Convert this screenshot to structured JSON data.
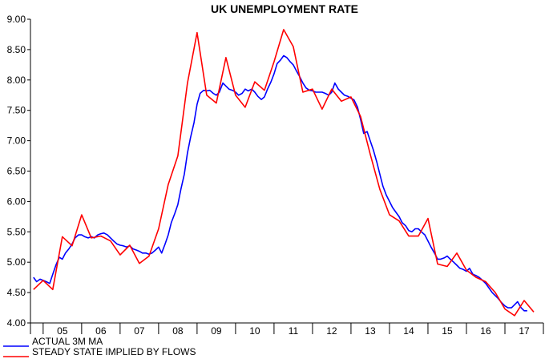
{
  "chart_data": {
    "type": "line",
    "title": "UK UNEMPLOYMENT RATE",
    "xlabel": "",
    "ylabel": "",
    "ylim": [
      4.0,
      9.0
    ],
    "yticks": [
      "4.00",
      "4.50",
      "5.00",
      "5.50",
      "6.00",
      "6.50",
      "7.00",
      "7.50",
      "8.00",
      "8.50",
      "9.00"
    ],
    "xlim": [
      2004.67,
      2018.0
    ],
    "x_categories": [
      "05",
      "06",
      "07",
      "08",
      "09",
      "10",
      "11",
      "12",
      "13",
      "14",
      "15",
      "16",
      "17"
    ],
    "grid": false,
    "legend_position": "bottom-left",
    "colors": {
      "actual": "#0000ff",
      "steady": "#ff0000",
      "axis": "#000000"
    },
    "series": [
      {
        "name": "ACTUAL 3M MA",
        "key": "actual",
        "points": [
          [
            2004.75,
            4.75
          ],
          [
            2004.83,
            4.68
          ],
          [
            2004.92,
            4.72
          ],
          [
            2005.0,
            4.7
          ],
          [
            2005.08,
            4.68
          ],
          [
            2005.17,
            4.65
          ],
          [
            2005.25,
            4.8
          ],
          [
            2005.33,
            4.95
          ],
          [
            2005.42,
            5.08
          ],
          [
            2005.5,
            5.05
          ],
          [
            2005.58,
            5.15
          ],
          [
            2005.67,
            5.22
          ],
          [
            2005.75,
            5.3
          ],
          [
            2005.83,
            5.4
          ],
          [
            2005.92,
            5.45
          ],
          [
            2006.0,
            5.45
          ],
          [
            2006.08,
            5.42
          ],
          [
            2006.17,
            5.4
          ],
          [
            2006.25,
            5.42
          ],
          [
            2006.33,
            5.4
          ],
          [
            2006.42,
            5.45
          ],
          [
            2006.5,
            5.47
          ],
          [
            2006.58,
            5.48
          ],
          [
            2006.67,
            5.45
          ],
          [
            2006.75,
            5.4
          ],
          [
            2006.83,
            5.35
          ],
          [
            2006.92,
            5.3
          ],
          [
            2007.0,
            5.28
          ],
          [
            2007.08,
            5.27
          ],
          [
            2007.17,
            5.25
          ],
          [
            2007.25,
            5.27
          ],
          [
            2007.33,
            5.22
          ],
          [
            2007.42,
            5.2
          ],
          [
            2007.5,
            5.18
          ],
          [
            2007.58,
            5.15
          ],
          [
            2007.67,
            5.15
          ],
          [
            2007.75,
            5.13
          ],
          [
            2007.83,
            5.15
          ],
          [
            2007.92,
            5.2
          ],
          [
            2008.0,
            5.25
          ],
          [
            2008.08,
            5.15
          ],
          [
            2008.17,
            5.3
          ],
          [
            2008.25,
            5.45
          ],
          [
            2008.33,
            5.65
          ],
          [
            2008.42,
            5.8
          ],
          [
            2008.5,
            5.95
          ],
          [
            2008.58,
            6.2
          ],
          [
            2008.67,
            6.45
          ],
          [
            2008.75,
            6.8
          ],
          [
            2008.83,
            7.05
          ],
          [
            2008.92,
            7.3
          ],
          [
            2009.0,
            7.6
          ],
          [
            2009.08,
            7.78
          ],
          [
            2009.17,
            7.83
          ],
          [
            2009.25,
            7.82
          ],
          [
            2009.33,
            7.83
          ],
          [
            2009.42,
            7.78
          ],
          [
            2009.5,
            7.75
          ],
          [
            2009.58,
            7.8
          ],
          [
            2009.67,
            7.95
          ],
          [
            2009.75,
            7.9
          ],
          [
            2009.83,
            7.85
          ],
          [
            2009.92,
            7.83
          ],
          [
            2010.0,
            7.8
          ],
          [
            2010.08,
            7.75
          ],
          [
            2010.17,
            7.78
          ],
          [
            2010.25,
            7.85
          ],
          [
            2010.33,
            7.82
          ],
          [
            2010.42,
            7.85
          ],
          [
            2010.5,
            7.8
          ],
          [
            2010.58,
            7.73
          ],
          [
            2010.67,
            7.68
          ],
          [
            2010.75,
            7.72
          ],
          [
            2010.83,
            7.85
          ],
          [
            2010.92,
            7.97
          ],
          [
            2011.0,
            8.1
          ],
          [
            2011.08,
            8.27
          ],
          [
            2011.17,
            8.33
          ],
          [
            2011.25,
            8.4
          ],
          [
            2011.33,
            8.37
          ],
          [
            2011.42,
            8.3
          ],
          [
            2011.5,
            8.25
          ],
          [
            2011.58,
            8.15
          ],
          [
            2011.67,
            8.05
          ],
          [
            2011.75,
            7.95
          ],
          [
            2011.83,
            7.87
          ],
          [
            2011.92,
            7.83
          ],
          [
            2012.0,
            7.82
          ],
          [
            2012.08,
            7.8
          ],
          [
            2012.17,
            7.8
          ],
          [
            2012.25,
            7.8
          ],
          [
            2012.33,
            7.78
          ],
          [
            2012.42,
            7.75
          ],
          [
            2012.5,
            7.8
          ],
          [
            2012.58,
            7.95
          ],
          [
            2012.67,
            7.85
          ],
          [
            2012.75,
            7.8
          ],
          [
            2012.83,
            7.75
          ],
          [
            2012.92,
            7.73
          ],
          [
            2013.0,
            7.7
          ],
          [
            2013.08,
            7.67
          ],
          [
            2013.17,
            7.55
          ],
          [
            2013.25,
            7.35
          ],
          [
            2013.33,
            7.12
          ],
          [
            2013.42,
            7.15
          ],
          [
            2013.5,
            7.0
          ],
          [
            2013.58,
            6.85
          ],
          [
            2013.67,
            6.65
          ],
          [
            2013.75,
            6.45
          ],
          [
            2013.83,
            6.25
          ],
          [
            2013.92,
            6.1
          ],
          [
            2014.0,
            6.0
          ],
          [
            2014.08,
            5.9
          ],
          [
            2014.17,
            5.82
          ],
          [
            2014.25,
            5.75
          ],
          [
            2014.33,
            5.65
          ],
          [
            2014.42,
            5.6
          ],
          [
            2014.5,
            5.52
          ],
          [
            2014.58,
            5.5
          ],
          [
            2014.67,
            5.55
          ],
          [
            2014.75,
            5.55
          ],
          [
            2014.83,
            5.5
          ],
          [
            2014.92,
            5.45
          ],
          [
            2015.0,
            5.35
          ],
          [
            2015.08,
            5.25
          ],
          [
            2015.17,
            5.15
          ],
          [
            2015.25,
            5.05
          ],
          [
            2015.33,
            5.05
          ],
          [
            2015.42,
            5.07
          ],
          [
            2015.5,
            5.1
          ],
          [
            2015.58,
            5.05
          ],
          [
            2015.67,
            5.0
          ],
          [
            2015.75,
            4.95
          ],
          [
            2015.83,
            4.9
          ],
          [
            2015.92,
            4.88
          ],
          [
            2016.0,
            4.85
          ],
          [
            2016.08,
            4.9
          ],
          [
            2016.17,
            4.8
          ],
          [
            2016.25,
            4.78
          ],
          [
            2016.33,
            4.75
          ],
          [
            2016.42,
            4.7
          ],
          [
            2016.5,
            4.65
          ],
          [
            2016.58,
            4.58
          ],
          [
            2016.67,
            4.5
          ],
          [
            2016.75,
            4.45
          ],
          [
            2016.83,
            4.4
          ],
          [
            2016.92,
            4.33
          ],
          [
            2017.0,
            4.28
          ],
          [
            2017.08,
            4.25
          ],
          [
            2017.17,
            4.25
          ],
          [
            2017.25,
            4.3
          ],
          [
            2017.33,
            4.35
          ],
          [
            2017.42,
            4.25
          ],
          [
            2017.5,
            4.2
          ],
          [
            2017.58,
            4.2
          ]
        ]
      },
      {
        "name": "STEADY STATE IMPLIED BY FLOWS",
        "key": "steady",
        "points": [
          [
            2004.75,
            4.55
          ],
          [
            2005.0,
            4.7
          ],
          [
            2005.25,
            4.55
          ],
          [
            2005.5,
            5.42
          ],
          [
            2005.75,
            5.27
          ],
          [
            2006.0,
            5.78
          ],
          [
            2006.25,
            5.4
          ],
          [
            2006.5,
            5.43
          ],
          [
            2006.75,
            5.35
          ],
          [
            2007.0,
            5.12
          ],
          [
            2007.25,
            5.28
          ],
          [
            2007.5,
            4.98
          ],
          [
            2007.75,
            5.1
          ],
          [
            2008.0,
            5.55
          ],
          [
            2008.25,
            6.28
          ],
          [
            2008.5,
            6.75
          ],
          [
            2008.75,
            7.95
          ],
          [
            2009.0,
            8.78
          ],
          [
            2009.25,
            7.75
          ],
          [
            2009.5,
            7.62
          ],
          [
            2009.75,
            8.37
          ],
          [
            2010.0,
            7.75
          ],
          [
            2010.25,
            7.55
          ],
          [
            2010.5,
            7.97
          ],
          [
            2010.75,
            7.83
          ],
          [
            2011.0,
            8.3
          ],
          [
            2011.25,
            8.83
          ],
          [
            2011.5,
            8.55
          ],
          [
            2011.75,
            7.8
          ],
          [
            2012.0,
            7.85
          ],
          [
            2012.25,
            7.52
          ],
          [
            2012.5,
            7.85
          ],
          [
            2012.75,
            7.65
          ],
          [
            2013.0,
            7.72
          ],
          [
            2013.25,
            7.4
          ],
          [
            2013.5,
            6.78
          ],
          [
            2013.75,
            6.2
          ],
          [
            2014.0,
            5.78
          ],
          [
            2014.25,
            5.68
          ],
          [
            2014.5,
            5.43
          ],
          [
            2014.75,
            5.43
          ],
          [
            2015.0,
            5.72
          ],
          [
            2015.25,
            4.97
          ],
          [
            2015.5,
            4.93
          ],
          [
            2015.75,
            5.15
          ],
          [
            2016.0,
            4.87
          ],
          [
            2016.25,
            4.75
          ],
          [
            2016.5,
            4.68
          ],
          [
            2016.75,
            4.5
          ],
          [
            2017.0,
            4.23
          ],
          [
            2017.25,
            4.12
          ],
          [
            2017.5,
            4.37
          ],
          [
            2017.75,
            4.18
          ]
        ]
      }
    ]
  }
}
